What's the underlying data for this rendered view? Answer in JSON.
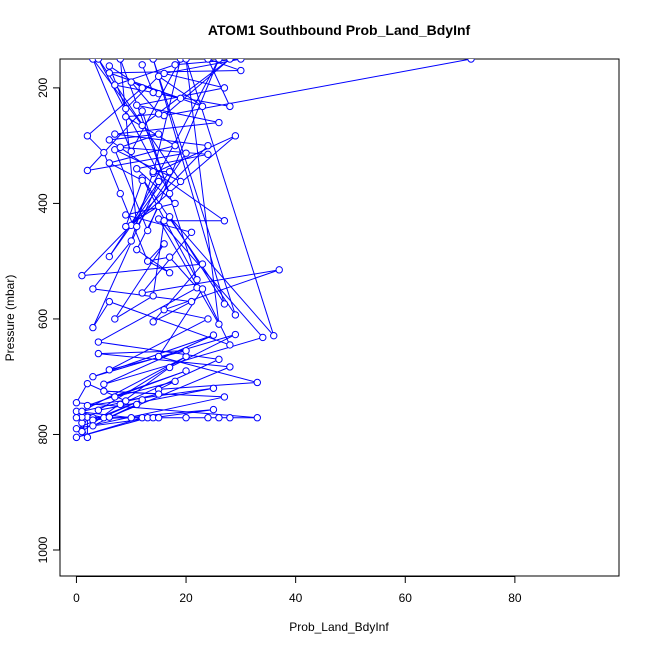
{
  "chart_data": {
    "type": "line",
    "title": "ATOM1 Southbound Prob_Land_BdyInf",
    "xlabel": "Prob_Land_BdyInf",
    "ylabel": "Pressure (mbar)",
    "xlim": [
      -3,
      99
    ],
    "ylim": [
      1045,
      150
    ],
    "y_reversed": true,
    "xticks": [
      0,
      20,
      40,
      60,
      80
    ],
    "yticks": [
      200,
      400,
      600,
      800,
      1000
    ],
    "grid": false,
    "legend": "none",
    "color": "#0000ff",
    "marker": "open-circle",
    "series": [
      {
        "points": [
          [
            72,
            150
          ],
          [
            16,
            248
          ],
          [
            28,
            150
          ],
          [
            12,
            265
          ],
          [
            3,
            150
          ],
          [
            10,
            310
          ],
          [
            19,
            150
          ],
          [
            14,
            348
          ],
          [
            29,
            283
          ],
          [
            10,
            438
          ],
          [
            26,
            150
          ],
          [
            13,
            447
          ],
          [
            7,
            307
          ],
          [
            19,
            362
          ],
          [
            4,
            150
          ],
          [
            17,
            383
          ],
          [
            8,
            150
          ],
          [
            11,
            440
          ],
          [
            20,
            313
          ],
          [
            2,
            343
          ],
          [
            12,
            240
          ],
          [
            22,
            532
          ],
          [
            12,
            356
          ],
          [
            29,
            593
          ],
          [
            14,
            150
          ],
          [
            27,
            574
          ],
          [
            17,
            423
          ],
          [
            36,
            629
          ],
          [
            20,
            150
          ],
          [
            26,
            609
          ],
          [
            15,
            427
          ],
          [
            34,
            632
          ],
          [
            5,
            713
          ],
          [
            25,
            628
          ],
          [
            3,
            700
          ],
          [
            29,
            627
          ],
          [
            17,
            684
          ],
          [
            1,
            795
          ],
          [
            2,
            770
          ],
          [
            2,
            805
          ],
          [
            1,
            780
          ],
          [
            1,
            770
          ],
          [
            3,
            771
          ],
          [
            5,
            771
          ],
          [
            0,
            760
          ],
          [
            10,
            771
          ],
          [
            12,
            771
          ],
          [
            0,
            805
          ],
          [
            13,
            771
          ],
          [
            14,
            771
          ],
          [
            15,
            771
          ],
          [
            0,
            771
          ],
          [
            20,
            771
          ],
          [
            24,
            771
          ],
          [
            26,
            771
          ],
          [
            28,
            771
          ],
          [
            33,
            771
          ],
          [
            0,
            745
          ],
          [
            2,
            712
          ],
          [
            9,
            742
          ],
          [
            8,
            748
          ],
          [
            26,
            670
          ],
          [
            4,
            640
          ],
          [
            22,
            546
          ],
          [
            17,
            493
          ],
          [
            13,
            500
          ],
          [
            8,
            383
          ],
          [
            5,
            312
          ],
          [
            2,
            283
          ],
          [
            12,
            200
          ],
          [
            6,
            162
          ],
          [
            9,
            236
          ],
          [
            15,
            180
          ],
          [
            23,
            232
          ],
          [
            6,
            174
          ],
          [
            30,
            170
          ],
          [
            24,
            150
          ],
          [
            28,
            232
          ],
          [
            15,
            210
          ],
          [
            7,
            195
          ],
          [
            18,
            160
          ],
          [
            30,
            150
          ],
          [
            16,
            175
          ],
          [
            27,
            200
          ],
          [
            11,
            230
          ],
          [
            26,
            260
          ],
          [
            7,
            280
          ],
          [
            24,
            300
          ],
          [
            1,
            525
          ],
          [
            23,
            505
          ],
          [
            14,
            605
          ],
          [
            21,
            570
          ],
          [
            3,
            548
          ],
          [
            10,
            465
          ],
          [
            14,
            345
          ],
          [
            17,
            345
          ],
          [
            6,
            492
          ],
          [
            15,
            362
          ],
          [
            3,
            615
          ],
          [
            6,
            570
          ],
          [
            28,
            645
          ],
          [
            23,
            548
          ],
          [
            15,
            665
          ],
          [
            33,
            710
          ],
          [
            15,
            722
          ],
          [
            18,
            708
          ],
          [
            7,
            735
          ],
          [
            20,
            690
          ],
          [
            2,
            750
          ],
          [
            25,
            720
          ],
          [
            4,
            758
          ],
          [
            20,
            665
          ],
          [
            1,
            760
          ],
          [
            15,
            730
          ],
          [
            5,
            725
          ],
          [
            27,
            735
          ],
          [
            0,
            790
          ],
          [
            12,
            740
          ],
          [
            3,
            775
          ],
          [
            25,
            757
          ],
          [
            3,
            785
          ],
          [
            11,
            748
          ],
          [
            6,
            770
          ],
          [
            28,
            683
          ],
          [
            4,
            660
          ],
          [
            20,
            655
          ],
          [
            6,
            688
          ],
          [
            24,
            600
          ],
          [
            16,
            584
          ],
          [
            37,
            515
          ],
          [
            12,
            555
          ],
          [
            21,
            450
          ],
          [
            9,
            420
          ],
          [
            18,
            400
          ],
          [
            11,
            340
          ],
          [
            24,
            315
          ],
          [
            8,
            303
          ],
          [
            15,
            280
          ],
          [
            6,
            290
          ],
          [
            27,
            430
          ],
          [
            16,
            430
          ],
          [
            14,
            560
          ],
          [
            7,
            600
          ],
          [
            16,
            470
          ],
          [
            13,
            500
          ],
          [
            17,
            520
          ],
          [
            11,
            480
          ],
          [
            15,
            405
          ],
          [
            9,
            440
          ],
          [
            12,
            360
          ],
          [
            6,
            330
          ],
          [
            18,
            300
          ],
          [
            9,
            250
          ],
          [
            15,
            245
          ],
          [
            10,
            190
          ],
          [
            19,
            218
          ],
          [
            14,
            208
          ],
          [
            12,
            160
          ]
        ]
      }
    ]
  }
}
